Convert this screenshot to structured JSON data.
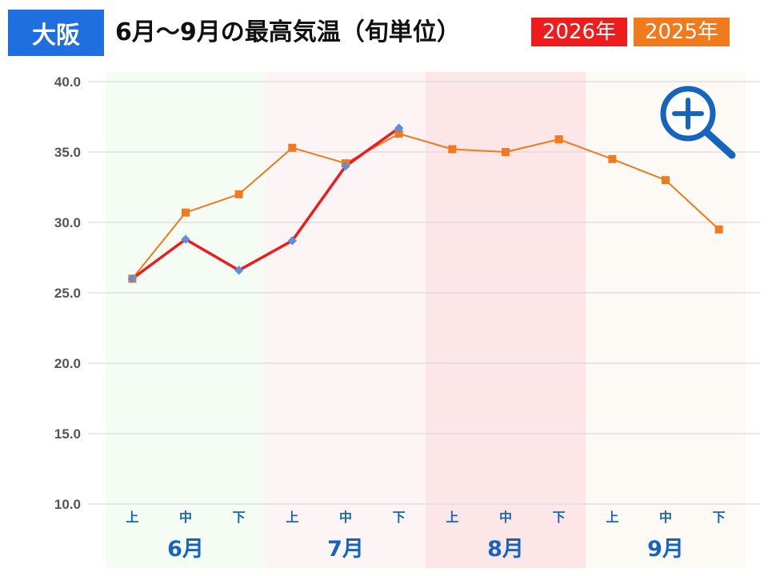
{
  "header": {
    "city": "大阪",
    "title": "6月～9月の最高気温（旬単位）"
  },
  "zoom_icon": "zoom-in-icon",
  "chart_data": {
    "type": "line",
    "title": "6月～9月の最高気温（旬単位）",
    "xlabel": "",
    "ylabel": "",
    "ylim": [
      10,
      40
    ],
    "yticks": [
      "10.0",
      "15.0",
      "20.0",
      "25.0",
      "30.0",
      "35.0",
      "40.0"
    ],
    "categories": [
      "上",
      "中",
      "下",
      "上",
      "中",
      "下",
      "上",
      "中",
      "下",
      "上",
      "中",
      "下"
    ],
    "months": [
      "6月",
      "7月",
      "8月",
      "9月"
    ],
    "grid": true,
    "legend": "top-right",
    "series": [
      {
        "name": "2026年",
        "color": "#ee1c1c",
        "marker_color": "#5b8fe0",
        "values": [
          26.0,
          28.8,
          26.6,
          28.7,
          34.0,
          36.7,
          null,
          null,
          null,
          null,
          null,
          null
        ]
      },
      {
        "name": "2025年",
        "color": "#f07a1d",
        "marker_color": "#f07a1d",
        "values": [
          26.0,
          30.7,
          32.0,
          35.3,
          34.2,
          36.3,
          35.2,
          35.0,
          35.9,
          34.5,
          33.0,
          29.5
        ]
      }
    ]
  }
}
